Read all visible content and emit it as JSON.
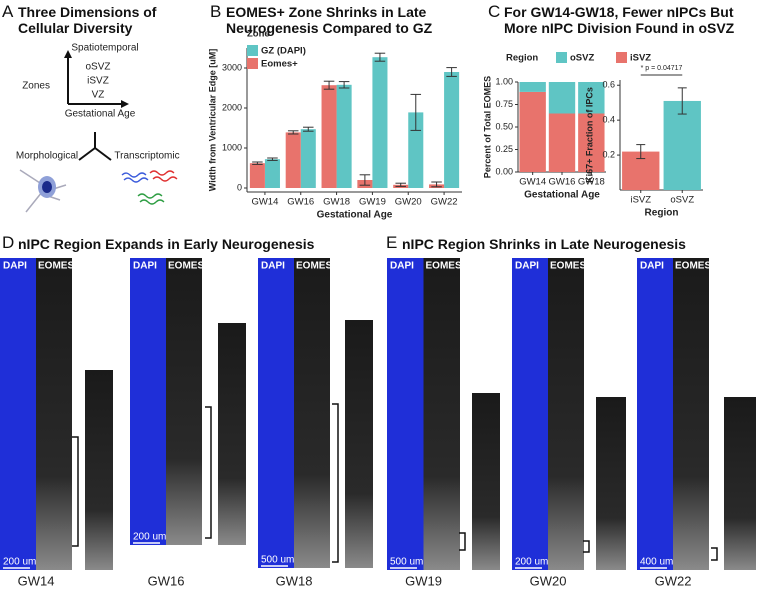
{
  "panels": {
    "a": {
      "letter": "A",
      "title": "Three Dimensions of Cellular Diversity",
      "axis_top": "Spatiotemporal",
      "axis_left": "Zones",
      "zones": [
        "oSVZ",
        "iSVZ",
        "VZ"
      ],
      "axis_bottom": "Gestational Age",
      "branches": [
        "Morphological",
        "Transcriptomic"
      ]
    },
    "b": {
      "letter": "B"
    },
    "c": {
      "letter": "C",
      "title": "For GW14-GW18, Fewer nIPCs But More nIPC Division Found in oSVZ"
    },
    "d": {
      "letter": "D",
      "title": "nIPC Region Expands in Early Neurogenesis",
      "images": [
        {
          "stage": "GW14",
          "channels": [
            "DAPI",
            "EOMES"
          ],
          "scale": "200 um"
        },
        {
          "stage": "GW16",
          "channels": [
            "DAPI",
            "EOMES"
          ],
          "scale": "200 um"
        },
        {
          "stage": "GW18",
          "channels": [
            "DAPI",
            "EOMES"
          ],
          "scale": "500 um"
        }
      ]
    },
    "e": {
      "letter": "E",
      "title": "nIPC Region Shrinks in Late Neurogenesis",
      "images": [
        {
          "stage": "GW19",
          "channels": [
            "DAPI",
            "EOMES"
          ],
          "scale": "500 um"
        },
        {
          "stage": "GW20",
          "channels": [
            "DAPI",
            "EOMES"
          ],
          "scale": "200 um"
        },
        {
          "stage": "GW22",
          "channels": [
            "DAPI",
            "EOMES"
          ],
          "scale": "400 um"
        }
      ]
    }
  },
  "chart_data": [
    {
      "type": "grouped_bar",
      "title": "EOMES+ Zone Shrinks in Late Neurogenesis Compared to GZ",
      "categories": [
        "GW14",
        "GW16",
        "GW18",
        "GW19",
        "GW20",
        "GW22"
      ],
      "legend_title": "Zone",
      "series": [
        {
          "name": "GZ (DAPI)",
          "color": "#5fc5c4",
          "values": [
            720,
            1470,
            2580,
            3270,
            1890,
            2900
          ],
          "errors": [
            30,
            50,
            80,
            100,
            450,
            110
          ]
        },
        {
          "name": "Eomes+",
          "color": "#e8736c",
          "values": [
            620,
            1390,
            2570,
            200,
            80,
            90
          ],
          "errors": [
            30,
            40,
            100,
            130,
            40,
            60
          ]
        }
      ],
      "x_label": "Gestational Age",
      "y_label": "Width from Ventricular Edge [uM]",
      "ylim": [
        -100,
        3500
      ],
      "yticks": [
        0,
        1000,
        2000,
        3000
      ]
    },
    {
      "type": "stacked_bar",
      "categories": [
        "GW14",
        "GW16",
        "GW18"
      ],
      "legend_title": "Region",
      "series": [
        {
          "name": "oSVZ",
          "color": "#5fc5c4",
          "values": [
            0.11,
            0.35,
            0.35
          ]
        },
        {
          "name": "iSVZ",
          "color": "#e8736c",
          "values": [
            0.89,
            0.65,
            0.65
          ]
        }
      ],
      "x_label": "Gestational Age",
      "y_label": "Percent of Total EOMES",
      "ylim": [
        0,
        1.0
      ],
      "yticks": [
        {
          "value": 0,
          "label": "0.00"
        },
        {
          "value": 0.25,
          "label": "0.25"
        },
        {
          "value": 0.5,
          "label": "0.50"
        },
        {
          "value": 0.75,
          "label": "0.75"
        },
        {
          "value": 1,
          "label": "1.00"
        }
      ]
    },
    {
      "type": "bar",
      "categories": [
        "iSVZ",
        "oSVZ"
      ],
      "colors": [
        "#e8736c",
        "#5fc5c4"
      ],
      "values": [
        0.22,
        0.51
      ],
      "errors": [
        0.04,
        0.075
      ],
      "annotation": "* p = 0.04717",
      "x_label": "Region",
      "y_label": "Ki67+ Fraction of IPCs",
      "ylim": [
        0,
        0.63
      ],
      "yticks": [
        0.2,
        0.4,
        0.6
      ]
    }
  ]
}
